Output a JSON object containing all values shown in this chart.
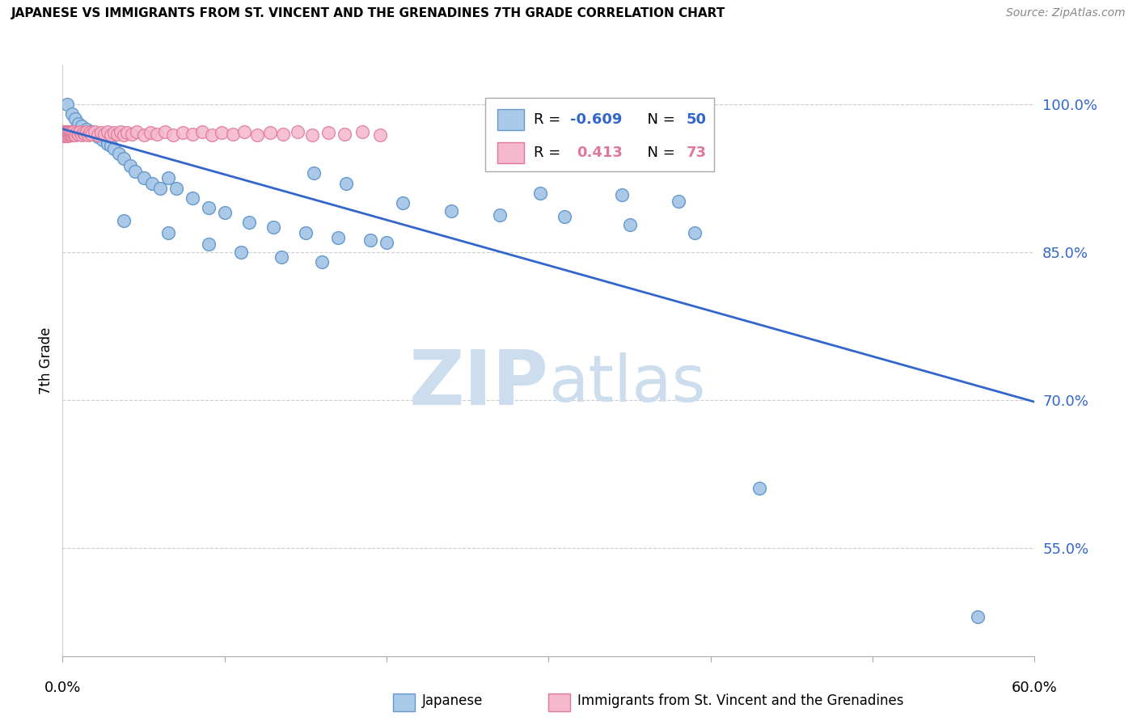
{
  "title": "JAPANESE VS IMMIGRANTS FROM ST. VINCENT AND THE GRENADINES 7TH GRADE CORRELATION CHART",
  "source": "Source: ZipAtlas.com",
  "ylabel": "7th Grade",
  "yticks": [
    1.0,
    0.85,
    0.7,
    0.55
  ],
  "ytick_labels": [
    "100.0%",
    "85.0%",
    "70.0%",
    "55.0%"
  ],
  "xlim": [
    0.0,
    0.6
  ],
  "ylim": [
    0.44,
    1.04
  ],
  "blue_color": "#aac8e8",
  "blue_edge": "#6699cc",
  "blue_line": "#3366cc",
  "pink_color": "#f5b8cc",
  "pink_edge": "#e07898",
  "watermark_zip_color": "#ccdded",
  "watermark_atlas_color": "#ccdded",
  "blue_scatter_x": [
    0.003,
    0.006,
    0.008,
    0.01,
    0.012,
    0.015,
    0.018,
    0.02,
    0.022,
    0.025,
    0.028,
    0.03,
    0.032,
    0.035,
    0.038,
    0.042,
    0.045,
    0.05,
    0.055,
    0.06,
    0.065,
    0.07,
    0.08,
    0.09,
    0.1,
    0.115,
    0.13,
    0.15,
    0.17,
    0.19,
    0.21,
    0.24,
    0.27,
    0.31,
    0.35,
    0.39,
    0.155,
    0.175,
    0.295,
    0.345,
    0.38,
    0.038,
    0.065,
    0.09,
    0.11,
    0.135,
    0.16,
    0.2,
    0.43,
    0.565
  ],
  "blue_scatter_y": [
    1.0,
    0.99,
    0.985,
    0.98,
    0.978,
    0.975,
    0.972,
    0.97,
    0.967,
    0.964,
    0.96,
    0.958,
    0.955,
    0.95,
    0.945,
    0.938,
    0.932,
    0.925,
    0.92,
    0.915,
    0.925,
    0.915,
    0.905,
    0.895,
    0.89,
    0.88,
    0.875,
    0.87,
    0.865,
    0.862,
    0.9,
    0.892,
    0.888,
    0.886,
    0.878,
    0.87,
    0.93,
    0.92,
    0.91,
    0.908,
    0.902,
    0.882,
    0.87,
    0.858,
    0.85,
    0.845,
    0.84,
    0.86,
    0.61,
    0.48
  ],
  "pink_scatter_x": [
    0.0005,
    0.0006,
    0.0007,
    0.0008,
    0.001,
    0.001,
    0.0012,
    0.0013,
    0.0015,
    0.0016,
    0.0018,
    0.002,
    0.002,
    0.0022,
    0.0025,
    0.003,
    0.003,
    0.0032,
    0.0035,
    0.004,
    0.004,
    0.0045,
    0.005,
    0.005,
    0.006,
    0.006,
    0.007,
    0.007,
    0.008,
    0.009,
    0.01,
    0.011,
    0.012,
    0.013,
    0.014,
    0.015,
    0.016,
    0.017,
    0.018,
    0.02,
    0.022,
    0.024,
    0.026,
    0.028,
    0.03,
    0.032,
    0.034,
    0.036,
    0.038,
    0.04,
    0.043,
    0.046,
    0.05,
    0.054,
    0.058,
    0.063,
    0.068,
    0.074,
    0.08,
    0.086,
    0.092,
    0.098,
    0.105,
    0.112,
    0.12,
    0.128,
    0.136,
    0.145,
    0.154,
    0.164,
    0.174,
    0.185,
    0.196
  ],
  "pink_scatter_y": [
    0.97,
    0.972,
    0.968,
    0.971,
    0.969,
    0.972,
    0.968,
    0.971,
    0.969,
    0.972,
    0.968,
    0.97,
    0.972,
    0.969,
    0.971,
    0.969,
    0.972,
    0.968,
    0.971,
    0.97,
    0.972,
    0.969,
    0.97,
    0.972,
    0.969,
    0.972,
    0.97,
    0.972,
    0.969,
    0.971,
    0.97,
    0.972,
    0.969,
    0.971,
    0.97,
    0.972,
    0.969,
    0.971,
    0.97,
    0.972,
    0.969,
    0.971,
    0.97,
    0.972,
    0.969,
    0.971,
    0.97,
    0.972,
    0.969,
    0.971,
    0.97,
    0.972,
    0.969,
    0.971,
    0.97,
    0.972,
    0.969,
    0.971,
    0.97,
    0.972,
    0.969,
    0.971,
    0.97,
    0.972,
    0.969,
    0.971,
    0.97,
    0.972,
    0.969,
    0.971,
    0.97,
    0.972,
    0.969
  ],
  "trendline_x": [
    0.0,
    0.6
  ],
  "trendline_y": [
    0.975,
    0.698
  ]
}
